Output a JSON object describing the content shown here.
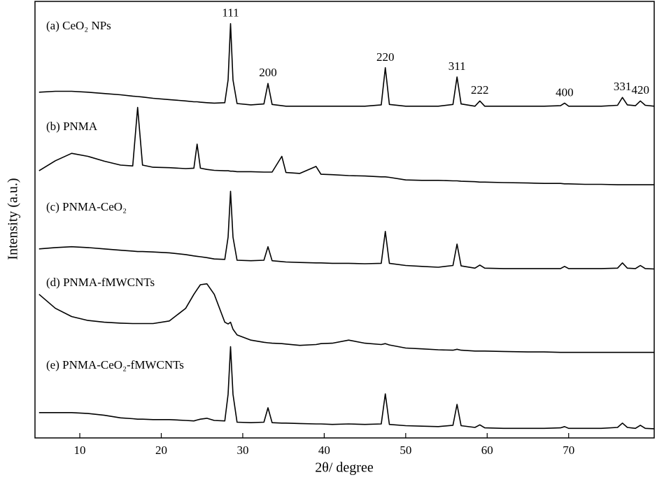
{
  "chart_data": {
    "type": "line",
    "xlabel": "2θ/ degree",
    "ylabel": "Intensity (a.u.)",
    "xlim": [
      4.5,
      80.5
    ],
    "ylim": [
      0,
      100
    ],
    "xticks": [
      10,
      20,
      30,
      40,
      50,
      60,
      70
    ],
    "grid": false,
    "x": [
      5,
      7,
      9,
      11,
      13,
      15,
      16.5,
      17.1,
      17.7,
      19,
      21,
      23,
      24,
      24.4,
      24.8,
      25.6,
      26.5,
      27.8,
      28.2,
      28.5,
      28.8,
      29.3,
      31,
      32.6,
      33.1,
      33.6,
      34.8,
      35.3,
      37,
      39,
      39.6,
      41,
      43,
      45,
      47,
      47.5,
      48,
      50,
      52,
      54,
      55.8,
      56.3,
      56.8,
      58.5,
      59.1,
      59.7,
      62,
      65,
      67,
      69,
      69.5,
      70,
      72,
      74,
      76,
      76.6,
      77.2,
      78.2,
      78.8,
      79.4,
      80.5
    ],
    "series": [
      {
        "name": "(a) CeO₂ NPs",
        "color": "#000000",
        "values": [
          79.2,
          79.4,
          79.4,
          79.2,
          78.9,
          78.6,
          78.3,
          78.2,
          78.1,
          77.8,
          77.5,
          77.2,
          77.0,
          77.0,
          76.9,
          76.8,
          76.7,
          76.8,
          82,
          94.9,
          82,
          76.6,
          76.3,
          76.5,
          81.2,
          76.4,
          76.1,
          76.0,
          76.0,
          76.0,
          76.0,
          76.0,
          76.0,
          76.0,
          76.3,
          84.8,
          76.4,
          76.0,
          76.0,
          76.0,
          76.4,
          82.7,
          76.5,
          76.0,
          77.2,
          76.0,
          76.0,
          76.0,
          76.0,
          76.1,
          76.7,
          76.0,
          76.0,
          76.0,
          76.2,
          78.0,
          76.3,
          76.1,
          77.2,
          76.2,
          76.0
        ]
      },
      {
        "name": "(b) PNMA",
        "color": "#000000",
        "values": [
          61.2,
          63.5,
          65.2,
          64.5,
          63.4,
          62.5,
          62.3,
          75.7,
          62.5,
          62.0,
          61.9,
          61.7,
          61.8,
          67.3,
          61.8,
          61.5,
          61.3,
          61.2,
          61.2,
          61.1,
          61.1,
          61.0,
          61.0,
          60.9,
          60.9,
          60.9,
          64.5,
          60.8,
          60.6,
          62.2,
          60.4,
          60.3,
          60.1,
          60.0,
          59.8,
          59.8,
          59.7,
          59.1,
          59.0,
          59.0,
          58.9,
          58.9,
          58.8,
          58.7,
          58.6,
          58.6,
          58.5,
          58.4,
          58.3,
          58.3,
          58.2,
          58.2,
          58.1,
          58.1,
          58.0,
          58.0,
          58.0,
          58.0,
          58.0,
          58.0,
          58.0
        ]
      },
      {
        "name": "(c) PNMA-CeO₂",
        "color": "#000000",
        "values": [
          43.3,
          43.6,
          43.8,
          43.6,
          43.3,
          43.0,
          42.8,
          42.7,
          42.7,
          42.6,
          42.4,
          42.0,
          41.7,
          41.6,
          41.5,
          41.3,
          41.0,
          40.9,
          46,
          56.5,
          46,
          40.7,
          40.6,
          40.7,
          43.8,
          40.6,
          40.4,
          40.3,
          40.2,
          40.1,
          40.1,
          40.0,
          40.0,
          39.9,
          40.0,
          47.3,
          40.0,
          39.5,
          39.3,
          39.1,
          39.5,
          44.4,
          39.4,
          38.9,
          39.6,
          38.9,
          38.8,
          38.8,
          38.8,
          38.8,
          39.3,
          38.8,
          38.8,
          38.8,
          38.9,
          40.1,
          38.9,
          38.8,
          39.5,
          38.8,
          38.7
        ]
      },
      {
        "name": "(d) PNMA-fMWCNTs",
        "color": "#000000",
        "values": [
          32.9,
          29.7,
          27.8,
          26.9,
          26.5,
          26.3,
          26.2,
          26.2,
          26.2,
          26.2,
          26.8,
          29.7,
          32.9,
          34.0,
          35.1,
          35.3,
          32.9,
          26.5,
          26.1,
          26.5,
          24.9,
          23.6,
          22.4,
          21.9,
          21.8,
          21.7,
          21.6,
          21.5,
          21.2,
          21.4,
          21.6,
          21.7,
          22.4,
          21.7,
          21.4,
          21.6,
          21.3,
          20.6,
          20.4,
          20.2,
          20.1,
          20.3,
          20.1,
          19.9,
          19.9,
          19.9,
          19.8,
          19.7,
          19.7,
          19.6,
          19.6,
          19.6,
          19.6,
          19.6,
          19.6,
          19.6,
          19.6,
          19.6,
          19.6,
          19.6,
          19.6
        ]
      },
      {
        "name": "(e) PNMA-CeO₂-fMWCNTs",
        "color": "#000000",
        "values": [
          5.8,
          5.8,
          5.8,
          5.6,
          5.2,
          4.6,
          4.4,
          4.3,
          4.3,
          4.2,
          4.2,
          4.0,
          3.9,
          4.1,
          4.3,
          4.5,
          4.0,
          3.9,
          10,
          20.9,
          10,
          3.6,
          3.5,
          3.6,
          6.9,
          3.5,
          3.4,
          3.4,
          3.3,
          3.2,
          3.2,
          3.1,
          3.2,
          3.1,
          3.2,
          10.1,
          3.1,
          2.8,
          2.7,
          2.6,
          2.9,
          7.7,
          2.8,
          2.4,
          3.0,
          2.3,
          2.2,
          2.2,
          2.2,
          2.3,
          2.6,
          2.2,
          2.2,
          2.2,
          2.4,
          3.4,
          2.4,
          2.2,
          2.9,
          2.2,
          2.1
        ]
      }
    ],
    "annotations": [
      {
        "text": "111",
        "x": 28.5
      },
      {
        "text": "200",
        "x": 33.1
      },
      {
        "text": "220",
        "x": 47.5
      },
      {
        "text": "311",
        "x": 56.3
      },
      {
        "text": "222",
        "x": 59.1
      },
      {
        "text": "400",
        "x": 69.5
      },
      {
        "text": "331",
        "x": 76.6
      },
      {
        "text": "420",
        "x": 78.8
      }
    ]
  }
}
